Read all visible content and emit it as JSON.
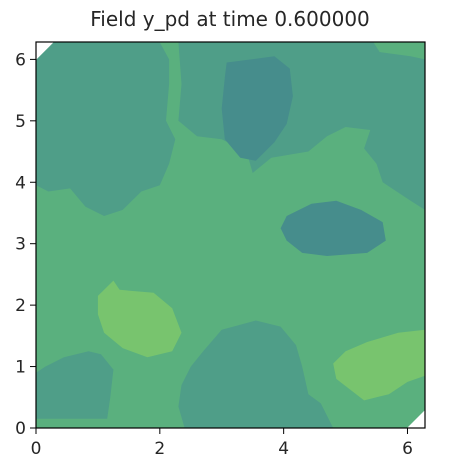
{
  "chart_data": {
    "type": "heatmap",
    "title": "Field y_pd at time 0.600000",
    "xlabel": "",
    "ylabel": "",
    "xlim": [
      0,
      6.283
    ],
    "ylim": [
      0,
      6.283
    ],
    "x_ticks": [
      "0",
      "2",
      "4",
      "6"
    ],
    "y_ticks": [
      "0",
      "1",
      "2",
      "3",
      "4",
      "5",
      "6"
    ],
    "grid": false,
    "legend": "none",
    "background_level_color": "#5ab07e",
    "colors": {
      "light": "#78c46e",
      "mid_light": "#5ab07e",
      "mid": "#4f9e88",
      "mid_dark": "#468d8c",
      "dark": "#3f7f8d"
    },
    "regions": [
      {
        "name": "upper-left-patch",
        "color": "#4f9e88",
        "points": [
          [
            0,
            6.18
          ],
          [
            0.1,
            6.28
          ],
          [
            2.0,
            6.28
          ],
          [
            2.15,
            6.0
          ],
          [
            2.15,
            5.6
          ],
          [
            2.1,
            5.0
          ],
          [
            2.25,
            4.7
          ],
          [
            2.15,
            4.3
          ],
          [
            2.0,
            3.95
          ],
          [
            1.7,
            3.85
          ],
          [
            1.4,
            3.55
          ],
          [
            1.1,
            3.45
          ],
          [
            0.8,
            3.6
          ],
          [
            0.55,
            3.9
          ],
          [
            0.2,
            3.85
          ],
          [
            0,
            3.95
          ]
        ]
      },
      {
        "name": "top-right-patch",
        "color": "#4f9e88",
        "points": [
          [
            2.3,
            6.28
          ],
          [
            5.45,
            6.28
          ],
          [
            5.55,
            6.12
          ],
          [
            6.05,
            6.05
          ],
          [
            6.283,
            6.0
          ],
          [
            6.283,
            3.55
          ],
          [
            6.05,
            3.7
          ],
          [
            5.6,
            4.0
          ],
          [
            5.5,
            4.3
          ],
          [
            5.3,
            4.55
          ],
          [
            5.4,
            4.85
          ],
          [
            5.0,
            4.9
          ],
          [
            4.7,
            4.75
          ],
          [
            4.4,
            4.5
          ],
          [
            3.8,
            4.4
          ],
          [
            3.5,
            4.15
          ],
          [
            3.4,
            4.5
          ],
          [
            3.0,
            4.7
          ],
          [
            2.6,
            4.75
          ],
          [
            2.3,
            5.0
          ],
          [
            2.35,
            5.6
          ]
        ]
      },
      {
        "name": "top-center-dark-patch",
        "color": "#468d8c",
        "points": [
          [
            3.08,
            5.95
          ],
          [
            3.85,
            6.05
          ],
          [
            4.1,
            5.85
          ],
          [
            4.15,
            5.4
          ],
          [
            4.05,
            4.95
          ],
          [
            3.85,
            4.65
          ],
          [
            3.55,
            4.35
          ],
          [
            3.3,
            4.4
          ],
          [
            3.05,
            4.7
          ],
          [
            3.0,
            5.2
          ],
          [
            3.05,
            5.7
          ]
        ]
      },
      {
        "name": "center-right-dark-patch",
        "color": "#468d8c",
        "points": [
          [
            4.05,
            3.45
          ],
          [
            4.45,
            3.65
          ],
          [
            4.85,
            3.7
          ],
          [
            5.25,
            3.55
          ],
          [
            5.6,
            3.35
          ],
          [
            5.65,
            3.05
          ],
          [
            5.35,
            2.85
          ],
          [
            4.7,
            2.8
          ],
          [
            4.3,
            2.85
          ],
          [
            4.05,
            3.05
          ],
          [
            3.95,
            3.25
          ]
        ]
      },
      {
        "name": "bottom-center-patch",
        "color": "#4f9e88",
        "points": [
          [
            2.4,
            0
          ],
          [
            4.8,
            0
          ],
          [
            4.6,
            0.4
          ],
          [
            4.4,
            0.55
          ],
          [
            4.3,
            1.0
          ],
          [
            4.2,
            1.35
          ],
          [
            3.95,
            1.65
          ],
          [
            3.55,
            1.75
          ],
          [
            3.0,
            1.6
          ],
          [
            2.7,
            1.25
          ],
          [
            2.5,
            1.0
          ],
          [
            2.35,
            0.7
          ],
          [
            2.3,
            0.35
          ]
        ]
      },
      {
        "name": "bottom-left-patch",
        "color": "#4f9e88",
        "points": [
          [
            0,
            0.15
          ],
          [
            1.15,
            0.15
          ],
          [
            1.2,
            0.5
          ],
          [
            1.25,
            0.95
          ],
          [
            1.05,
            1.2
          ],
          [
            0.85,
            1.25
          ],
          [
            0.45,
            1.15
          ],
          [
            0.15,
            1.0
          ],
          [
            0,
            0.9
          ]
        ]
      },
      {
        "name": "center-left-light-patch",
        "color": "#78c46e",
        "points": [
          [
            1.25,
            2.4
          ],
          [
            1.35,
            2.25
          ],
          [
            1.9,
            2.2
          ],
          [
            2.2,
            1.95
          ],
          [
            2.35,
            1.55
          ],
          [
            2.2,
            1.25
          ],
          [
            1.8,
            1.15
          ],
          [
            1.4,
            1.3
          ],
          [
            1.1,
            1.55
          ],
          [
            1.0,
            1.85
          ],
          [
            1.0,
            2.15
          ]
        ]
      },
      {
        "name": "bottom-right-light-patch",
        "color": "#78c46e",
        "points": [
          [
            5.35,
            1.4
          ],
          [
            5.85,
            1.55
          ],
          [
            6.283,
            1.6
          ],
          [
            6.283,
            0.85
          ],
          [
            6.0,
            0.75
          ],
          [
            5.7,
            0.55
          ],
          [
            5.3,
            0.45
          ],
          [
            4.85,
            0.8
          ],
          [
            4.8,
            1.05
          ],
          [
            5.0,
            1.25
          ]
        ]
      }
    ]
  }
}
